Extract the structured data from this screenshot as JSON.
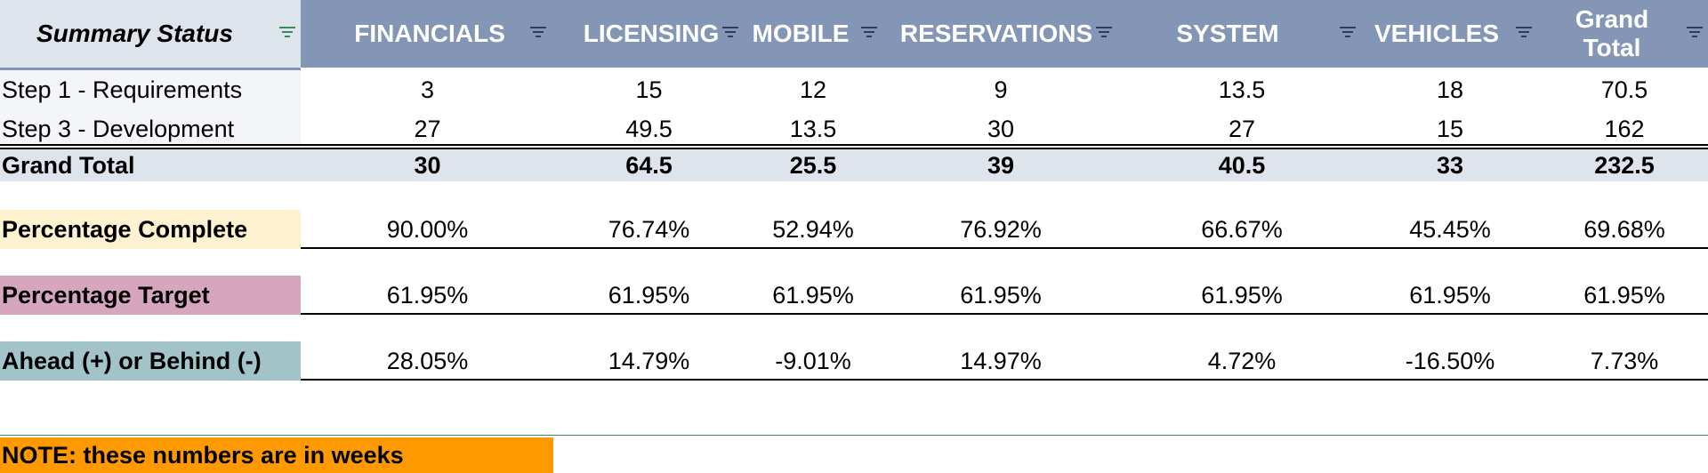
{
  "header": {
    "corner": "Summary Status",
    "columns": [
      "FINANCIALS",
      "LICENSING",
      "MOBILE",
      "RESERVATIONS",
      "SYSTEM",
      "VEHICLES",
      "Grand Total"
    ]
  },
  "rows": [
    {
      "label": "Step 1 - Requirements",
      "values": [
        "3",
        "15",
        "12",
        "9",
        "13.5",
        "18",
        "70.5"
      ]
    },
    {
      "label": "Step 3 - Development",
      "values": [
        "27",
        "49.5",
        "13.5",
        "30",
        "27",
        "15",
        "162"
      ]
    }
  ],
  "grand_total": {
    "label": "Grand Total",
    "values": [
      "30",
      "64.5",
      "25.5",
      "39",
      "40.5",
      "33",
      "232.5"
    ]
  },
  "percentage_complete": {
    "label": "Percentage Complete",
    "values": [
      "90.00%",
      "76.74%",
      "52.94%",
      "76.92%",
      "66.67%",
      "45.45%",
      "69.68%"
    ]
  },
  "percentage_target": {
    "label": "Percentage Target",
    "values": [
      "61.95%",
      "61.95%",
      "61.95%",
      "61.95%",
      "61.95%",
      "61.95%",
      "61.95%"
    ]
  },
  "ahead_behind": {
    "label": "Ahead (+) or Behind (-)",
    "values": [
      "28.05%",
      "14.79%",
      "-9.01%",
      "14.97%",
      "4.72%",
      "-16.50%",
      "7.73%"
    ]
  },
  "note": "NOTE: these numbers are in weeks",
  "colors": {
    "header": "#8496b5",
    "corner": "#dee4ec",
    "complete": "#fdf1cf",
    "target": "#d5a6bd",
    "ahead": "#a2c4c9",
    "note": "#ff9900"
  }
}
